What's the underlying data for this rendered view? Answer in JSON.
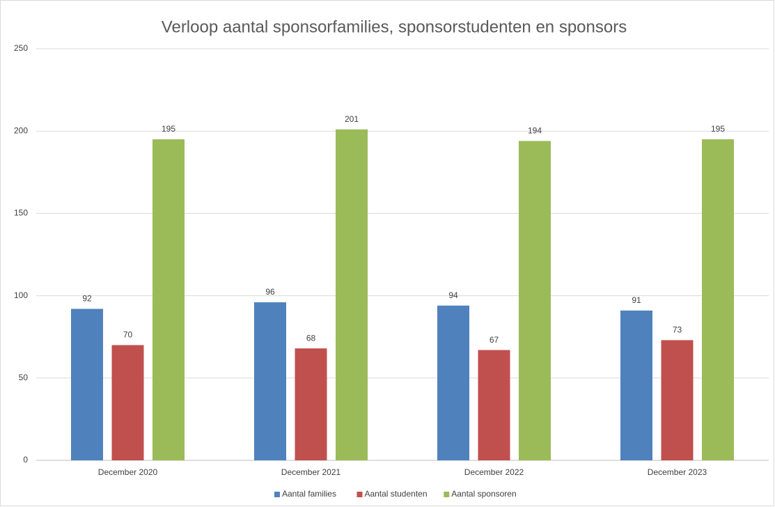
{
  "chart_data": {
    "type": "bar",
    "title": "Verloop aantal sponsorfamilies, sponsorstudenten en sponsors",
    "categories": [
      "December 2020",
      "December 2021",
      "December 2022",
      "December 2023"
    ],
    "series": [
      {
        "name": "Aantal families",
        "color": "#4f81bd",
        "values": [
          92,
          96,
          94,
          91
        ]
      },
      {
        "name": "Aantal studenten",
        "color": "#c0504d",
        "values": [
          70,
          68,
          67,
          73
        ]
      },
      {
        "name": "Aantal sponsoren",
        "color": "#9bbb59",
        "values": [
          195,
          201,
          194,
          195
        ]
      }
    ],
    "ylim": [
      0,
      250
    ],
    "yticks": [
      0,
      50,
      100,
      150,
      200,
      250
    ],
    "grid": true,
    "legend": "bottom"
  }
}
